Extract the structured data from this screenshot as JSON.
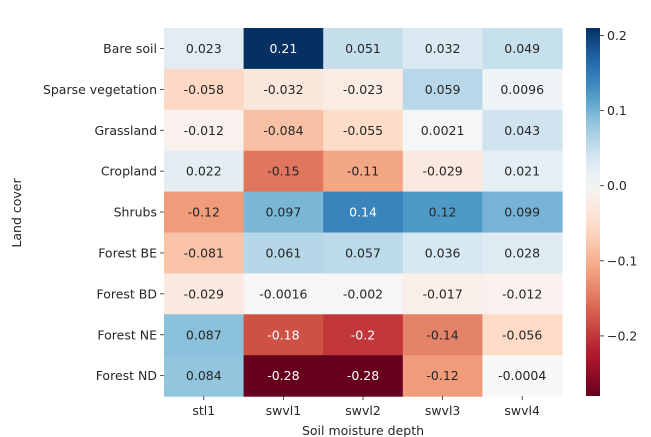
{
  "chart_data": {
    "type": "heatmap",
    "xlabel": "Soil moisture depth",
    "ylabel": "Land cover",
    "x_categories": [
      "stl1",
      "swvl1",
      "swvl2",
      "swvl3",
      "swvl4"
    ],
    "y_categories": [
      "Bare soil",
      "Sparse vegetation",
      "Grassland",
      "Cropland",
      "Shrubs",
      "Forest BE",
      "Forest BD",
      "Forest NE",
      "Forest ND"
    ],
    "values": [
      [
        0.023,
        0.21,
        0.051,
        0.032,
        0.049
      ],
      [
        -0.058,
        -0.032,
        -0.023,
        0.059,
        0.0096
      ],
      [
        -0.012,
        -0.084,
        -0.055,
        0.0021,
        0.043
      ],
      [
        0.022,
        -0.15,
        -0.11,
        -0.029,
        0.021
      ],
      [
        -0.12,
        0.097,
        0.14,
        0.12,
        0.099
      ],
      [
        -0.081,
        0.061,
        0.057,
        0.036,
        0.028
      ],
      [
        -0.029,
        -0.0016,
        -0.002,
        -0.017,
        -0.012
      ],
      [
        0.087,
        -0.18,
        -0.2,
        -0.14,
        -0.056
      ],
      [
        0.084,
        -0.28,
        -0.28,
        -0.12,
        -0.0004
      ]
    ],
    "cell_labels": [
      [
        "0.023",
        "0.21",
        "0.051",
        "0.032",
        "0.049"
      ],
      [
        "-0.058",
        "-0.032",
        "-0.023",
        "0.059",
        "0.0096"
      ],
      [
        "-0.012",
        "-0.084",
        "-0.055",
        "0.0021",
        "0.043"
      ],
      [
        "0.022",
        "-0.15",
        "-0.11",
        "-0.029",
        "0.021"
      ],
      [
        "-0.12",
        "0.097",
        "0.14",
        "0.12",
        "0.099"
      ],
      [
        "-0.081",
        "0.061",
        "0.057",
        "0.036",
        "0.028"
      ],
      [
        "-0.029",
        "-0.0016",
        "-0.002",
        "-0.017",
        "-0.012"
      ],
      [
        "0.087",
        "-0.18",
        "-0.2",
        "-0.14",
        "-0.056"
      ],
      [
        "0.084",
        "-0.28",
        "-0.28",
        "-0.12",
        "-0.0004"
      ]
    ],
    "colorscale": "RdBu",
    "color_range": [
      -0.28,
      0.21
    ],
    "colorbar_ticks": [
      0.2,
      0.1,
      0.0,
      -0.1,
      -0.2
    ],
    "colorbar_tick_labels": [
      "0.2",
      "0.1",
      "0.0",
      "−0.1",
      "−0.2"
    ]
  }
}
